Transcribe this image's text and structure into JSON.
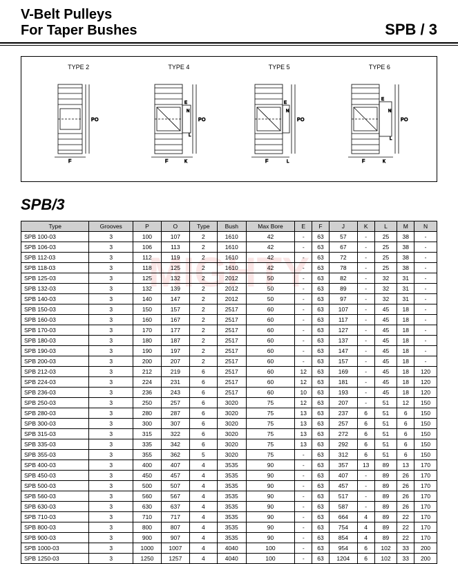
{
  "header": {
    "title_line1": "V-Belt  Pulleys",
    "title_line2": "For Taper Bushes",
    "title_right": "SPB / 3"
  },
  "diagrams": {
    "labels": [
      "TYPE 2",
      "TYPE 4",
      "TYPE 5",
      "TYPE 6"
    ]
  },
  "section_title": "SPB/3",
  "watermark": "MIGHTY",
  "table": {
    "columns": [
      "Type",
      "Grooves",
      "P",
      "O",
      "Type",
      "Bush",
      "Max Bore",
      "E",
      "F",
      "J",
      "K",
      "L",
      "M",
      "N"
    ],
    "rows": [
      [
        "SPB  100-03",
        "3",
        "100",
        "107",
        "2",
        "1610",
        "42",
        "-",
        "63",
        "57",
        "-",
        "25",
        "38",
        "-"
      ],
      [
        "SPB  106-03",
        "3",
        "106",
        "113",
        "2",
        "1610",
        "42",
        "-",
        "63",
        "67",
        "-",
        "25",
        "38",
        "-"
      ],
      [
        "SPB  112-03",
        "3",
        "112",
        "119",
        "2",
        "1610",
        "42",
        "-",
        "63",
        "72",
        "-",
        "25",
        "38",
        "-"
      ],
      [
        "SPB  118-03",
        "3",
        "118",
        "125",
        "2",
        "1610",
        "42",
        "-",
        "63",
        "78",
        "-",
        "25",
        "38",
        "-"
      ],
      [
        "SPB  125-03",
        "3",
        "125",
        "132",
        "2",
        "2012",
        "50",
        "-",
        "63",
        "82",
        "-",
        "32",
        "31",
        "-"
      ],
      [
        "SPB  132-03",
        "3",
        "132",
        "139",
        "2",
        "2012",
        "50",
        "-",
        "63",
        "89",
        "-",
        "32",
        "31",
        "-"
      ],
      [
        "SPB  140-03",
        "3",
        "140",
        "147",
        "2",
        "2012",
        "50",
        "-",
        "63",
        "97",
        "-",
        "32",
        "31",
        "-"
      ],
      [
        "SPB  150-03",
        "3",
        "150",
        "157",
        "2",
        "2517",
        "60",
        "-",
        "63",
        "107",
        "-",
        "45",
        "18",
        "-"
      ],
      [
        "SPB  160-03",
        "3",
        "160",
        "167",
        "2",
        "2517",
        "60",
        "-",
        "63",
        "117",
        "-",
        "45",
        "18",
        "-"
      ],
      [
        "SPB  170-03",
        "3",
        "170",
        "177",
        "2",
        "2517",
        "60",
        "-",
        "63",
        "127",
        "-",
        "45",
        "18",
        "-"
      ],
      [
        "SPB  180-03",
        "3",
        "180",
        "187",
        "2",
        "2517",
        "60",
        "-",
        "63",
        "137",
        "-",
        "45",
        "18",
        "-"
      ],
      [
        "SPB  190-03",
        "3",
        "190",
        "197",
        "2",
        "2517",
        "60",
        "-",
        "63",
        "147",
        "-",
        "45",
        "18",
        "-"
      ],
      [
        "SPB  200-03",
        "3",
        "200",
        "207",
        "2",
        "2517",
        "60",
        "-",
        "63",
        "157",
        "-",
        "45",
        "18",
        "-"
      ],
      [
        "SPB  212-03",
        "3",
        "212",
        "219",
        "6",
        "2517",
        "60",
        "12",
        "63",
        "169",
        "-",
        "45",
        "18",
        "120"
      ],
      [
        "SPB  224-03",
        "3",
        "224",
        "231",
        "6",
        "2517",
        "60",
        "12",
        "63",
        "181",
        "-",
        "45",
        "18",
        "120"
      ],
      [
        "SPB  236-03",
        "3",
        "236",
        "243",
        "6",
        "2517",
        "60",
        "10",
        "63",
        "193",
        "-",
        "45",
        "18",
        "120"
      ],
      [
        "SPB  250-03",
        "3",
        "250",
        "257",
        "6",
        "3020",
        "75",
        "12",
        "63",
        "207",
        "-",
        "51",
        "12",
        "150"
      ],
      [
        "SPB  280-03",
        "3",
        "280",
        "287",
        "6",
        "3020",
        "75",
        "13",
        "63",
        "237",
        "6",
        "51",
        "6",
        "150"
      ],
      [
        "SPB  300-03",
        "3",
        "300",
        "307",
        "6",
        "3020",
        "75",
        "13",
        "63",
        "257",
        "6",
        "51",
        "6",
        "150"
      ],
      [
        "SPB  315-03",
        "3",
        "315",
        "322",
        "6",
        "3020",
        "75",
        "13",
        "63",
        "272",
        "6",
        "51",
        "6",
        "150"
      ],
      [
        "SPB  335-03",
        "3",
        "335",
        "342",
        "6",
        "3020",
        "75",
        "13",
        "63",
        "292",
        "6",
        "51",
        "6",
        "150"
      ],
      [
        "SPB  355-03",
        "3",
        "355",
        "362",
        "5",
        "3020",
        "75",
        "-",
        "63",
        "312",
        "6",
        "51",
        "6",
        "150"
      ],
      [
        "SPB  400-03",
        "3",
        "400",
        "407",
        "4",
        "3535",
        "90",
        "-",
        "63",
        "357",
        "13",
        "89",
        "13",
        "170"
      ],
      [
        "SPB  450-03",
        "3",
        "450",
        "457",
        "4",
        "3535",
        "90",
        "-",
        "63",
        "407",
        "-",
        "89",
        "26",
        "170"
      ],
      [
        "SPB  500-03",
        "3",
        "500",
        "507",
        "4",
        "3535",
        "90",
        "-",
        "63",
        "457",
        "-",
        "89",
        "26",
        "170"
      ],
      [
        "SPB  560-03",
        "3",
        "560",
        "567",
        "4",
        "3535",
        "90",
        "-",
        "63",
        "517",
        "-",
        "89",
        "26",
        "170"
      ],
      [
        "SPB  630-03",
        "3",
        "630",
        "637",
        "4",
        "3535",
        "90",
        "-",
        "63",
        "587",
        "-",
        "89",
        "26",
        "170"
      ],
      [
        "SPB  710-03",
        "3",
        "710",
        "717",
        "4",
        "3535",
        "90",
        "-",
        "63",
        "664",
        "4",
        "89",
        "22",
        "170"
      ],
      [
        "SPB  800-03",
        "3",
        "800",
        "807",
        "4",
        "3535",
        "90",
        "-",
        "63",
        "754",
        "4",
        "89",
        "22",
        "170"
      ],
      [
        "SPB  900-03",
        "3",
        "900",
        "907",
        "4",
        "3535",
        "90",
        "-",
        "63",
        "854",
        "4",
        "89",
        "22",
        "170"
      ],
      [
        "SPB  1000-03",
        "3",
        "1000",
        "1007",
        "4",
        "4040",
        "100",
        "-",
        "63",
        "954",
        "6",
        "102",
        "33",
        "200"
      ],
      [
        "SPB  1250-03",
        "3",
        "1250",
        "1257",
        "4",
        "4040",
        "100",
        "-",
        "63",
        "1204",
        "6",
        "102",
        "33",
        "200"
      ]
    ]
  }
}
